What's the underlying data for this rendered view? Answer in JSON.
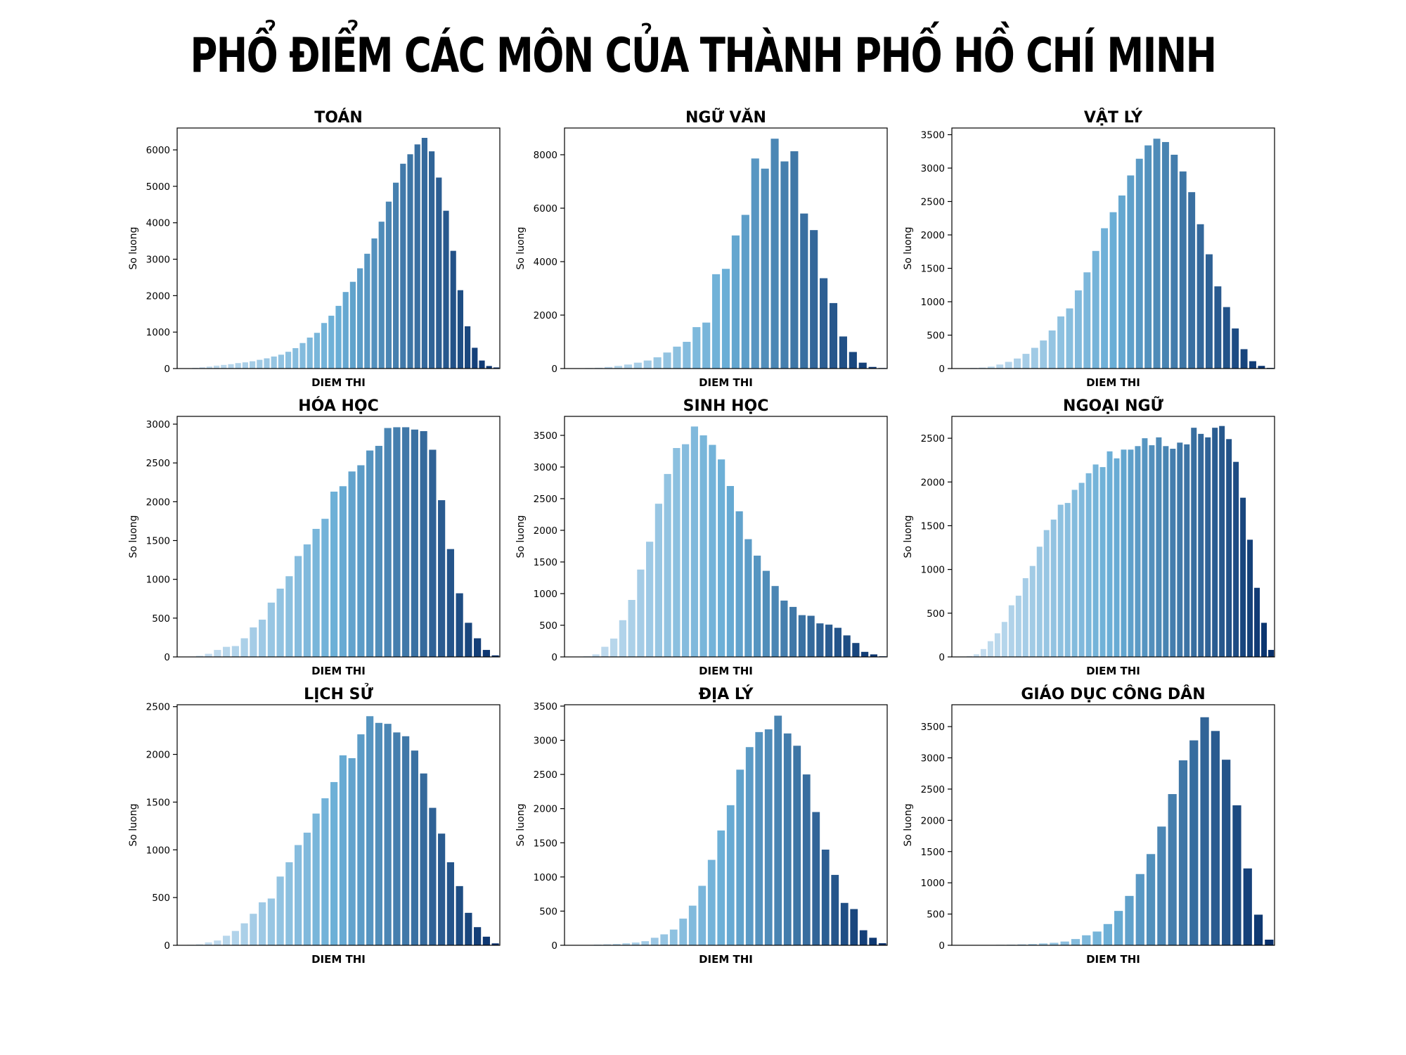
{
  "title": "PHỔ ĐIỂM CÁC MÔN CỦA THÀNH PHỐ HỒ CHÍ MINH",
  "colors": {
    "light": "#d6e6f4",
    "mid": "#6aaed6",
    "dark": "#08306b"
  },
  "chart_data": [
    {
      "type": "bar",
      "title": "TOÁN",
      "xlabel": "DIEM THI",
      "ylabel": "So luong",
      "ylim": [
        0,
        6600
      ],
      "yticks": [
        0,
        1000,
        2000,
        3000,
        4000,
        5000,
        6000
      ],
      "values": [
        5,
        10,
        20,
        35,
        55,
        80,
        100,
        120,
        150,
        170,
        200,
        240,
        280,
        330,
        380,
        460,
        560,
        700,
        850,
        980,
        1250,
        1450,
        1720,
        2100,
        2380,
        2750,
        3150,
        3570,
        4030,
        4580,
        5100,
        5620,
        5880,
        6150,
        6330,
        5960,
        5240,
        4330,
        3230,
        2150,
        1160,
        570,
        220,
        70,
        30
      ]
    },
    {
      "type": "bar",
      "title": "NGỮ VĂN",
      "xlabel": "DIEM THI",
      "ylabel": "So luong",
      "ylim": [
        0,
        9000
      ],
      "yticks": [
        0,
        2000,
        4000,
        6000,
        8000
      ],
      "values": [
        5,
        10,
        20,
        30,
        60,
        100,
        150,
        220,
        300,
        420,
        600,
        820,
        1000,
        1550,
        1720,
        3530,
        3730,
        4980,
        5750,
        7860,
        7480,
        8600,
        7750,
        8130,
        5800,
        5180,
        3380,
        2450,
        1200,
        620,
        220,
        60,
        20
      ]
    },
    {
      "type": "bar",
      "title": "VẬT LÝ",
      "xlabel": "DIEM THI",
      "ylabel": "So luong",
      "ylim": [
        0,
        3600
      ],
      "yticks": [
        0,
        500,
        1000,
        1500,
        2000,
        2500,
        3000,
        3500
      ],
      "values": [
        2,
        5,
        10,
        15,
        30,
        60,
        100,
        150,
        220,
        310,
        420,
        570,
        780,
        900,
        1170,
        1440,
        1760,
        2100,
        2340,
        2590,
        2890,
        3140,
        3340,
        3440,
        3390,
        3200,
        2950,
        2640,
        2160,
        1710,
        1230,
        920,
        600,
        290,
        110,
        40,
        10
      ]
    },
    {
      "type": "bar",
      "title": "HÓA HỌC",
      "xlabel": "DIEM THI",
      "ylabel": "So luong",
      "ylim": [
        0,
        3100
      ],
      "yticks": [
        0,
        500,
        1000,
        1500,
        2000,
        2500,
        3000
      ],
      "values": [
        2,
        5,
        15,
        40,
        90,
        130,
        140,
        240,
        380,
        480,
        700,
        880,
        1040,
        1300,
        1450,
        1650,
        1780,
        2130,
        2200,
        2390,
        2470,
        2660,
        2720,
        2950,
        2960,
        2960,
        2930,
        2910,
        2670,
        2020,
        1390,
        820,
        440,
        240,
        90,
        20
      ]
    },
    {
      "type": "bar",
      "title": "SINH HỌC",
      "xlabel": "DIEM THI",
      "ylabel": "So luong",
      "ylim": [
        0,
        3800
      ],
      "yticks": [
        0,
        500,
        1000,
        1500,
        2000,
        2500,
        3000,
        3500
      ],
      "values": [
        2,
        5,
        10,
        40,
        160,
        290,
        580,
        900,
        1380,
        1820,
        2420,
        2890,
        3300,
        3360,
        3640,
        3500,
        3350,
        3120,
        2700,
        2300,
        1860,
        1600,
        1360,
        1120,
        890,
        790,
        660,
        650,
        530,
        510,
        460,
        340,
        220,
        80,
        40,
        10
      ]
    },
    {
      "type": "bar",
      "title": "NGOẠI NGỮ",
      "xlabel": "DIEM THI",
      "ylabel": "So luong",
      "ylim": [
        0,
        2750
      ],
      "yticks": [
        0,
        500,
        1000,
        1500,
        2000,
        2500
      ],
      "values": [
        2,
        5,
        10,
        30,
        90,
        180,
        270,
        400,
        590,
        700,
        900,
        1040,
        1260,
        1450,
        1570,
        1740,
        1760,
        1910,
        1990,
        2100,
        2200,
        2170,
        2350,
        2270,
        2370,
        2370,
        2410,
        2500,
        2420,
        2510,
        2410,
        2380,
        2450,
        2430,
        2620,
        2550,
        2510,
        2620,
        2640,
        2490,
        2230,
        1820,
        1340,
        790,
        390,
        80
      ]
    },
    {
      "type": "bar",
      "title": "LỊCH SỬ",
      "xlabel": "DIEM THI",
      "ylabel": "So luong",
      "ylim": [
        0,
        2520
      ],
      "yticks": [
        0,
        500,
        1000,
        1500,
        2000,
        2500
      ],
      "values": [
        2,
        5,
        10,
        30,
        50,
        100,
        150,
        230,
        330,
        450,
        490,
        720,
        870,
        1050,
        1180,
        1380,
        1540,
        1710,
        1990,
        1960,
        2210,
        2400,
        2330,
        2320,
        2230,
        2190,
        2040,
        1800,
        1440,
        1170,
        870,
        620,
        340,
        190,
        90,
        20
      ]
    },
    {
      "type": "bar",
      "title": "ĐỊA LÝ",
      "xlabel": "DIEM THI",
      "ylabel": "So luong",
      "ylim": [
        0,
        3520
      ],
      "yticks": [
        0,
        500,
        1000,
        1500,
        2000,
        2500,
        3000,
        3500
      ],
      "values": [
        2,
        3,
        5,
        10,
        15,
        20,
        30,
        40,
        60,
        110,
        160,
        230,
        390,
        580,
        870,
        1250,
        1680,
        2050,
        2570,
        2900,
        3120,
        3160,
        3360,
        3100,
        2920,
        2500,
        1950,
        1400,
        1030,
        620,
        530,
        220,
        110,
        30
      ]
    },
    {
      "type": "bar",
      "title": "GIÁO DỤC CÔNG DÂN",
      "xlabel": "DIEM THI",
      "ylabel": "So luong",
      "ylim": [
        0,
        3850
      ],
      "yticks": [
        0,
        500,
        1000,
        1500,
        2000,
        2500,
        3000,
        3500
      ],
      "values": [
        1,
        2,
        3,
        5,
        8,
        10,
        15,
        20,
        30,
        40,
        60,
        100,
        160,
        220,
        340,
        550,
        790,
        1140,
        1460,
        1900,
        2420,
        2960,
        3280,
        3650,
        3430,
        2970,
        2240,
        1230,
        490,
        90
      ]
    }
  ]
}
